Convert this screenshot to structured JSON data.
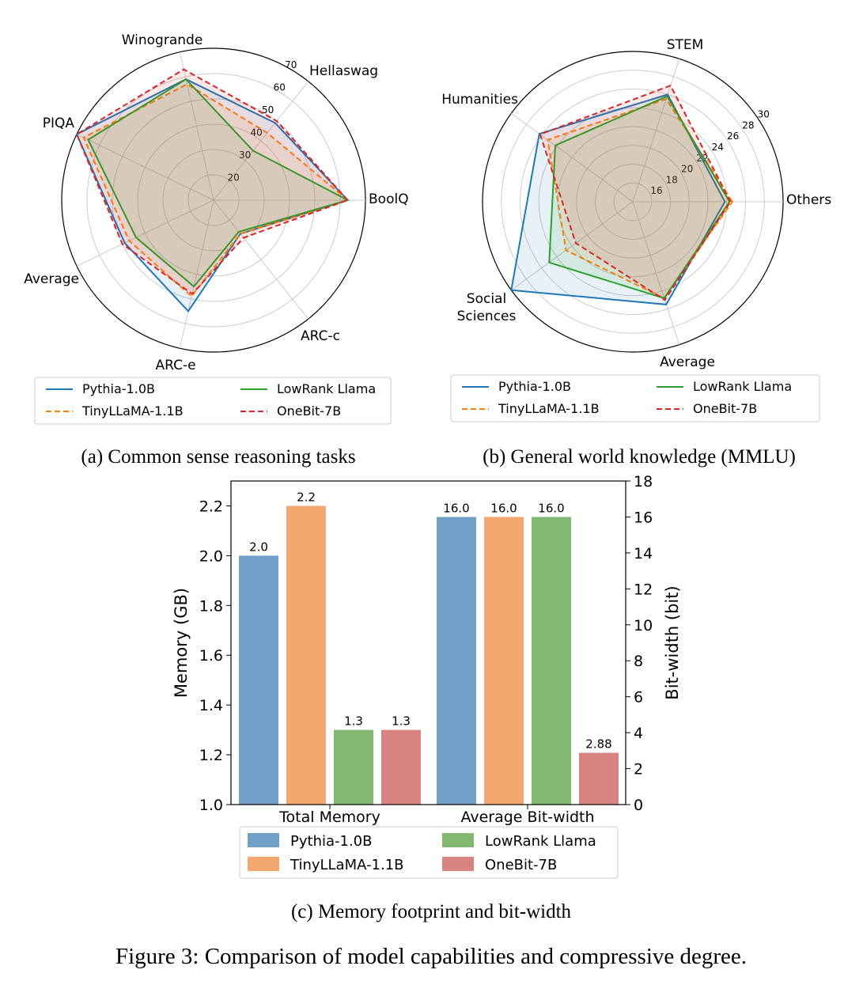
{
  "figure_caption": "Figure 3: Comparison of model capabilities and compressive degree.",
  "models": [
    {
      "name": "Pythia-1.0B",
      "color": "#1f77b4",
      "bar_color": "#729fc7",
      "dash": "solid"
    },
    {
      "name": "TinyLLaMA-1.1B",
      "color": "#ff7f0e",
      "bar_color": "#f4a86f",
      "dash": "dashed"
    },
    {
      "name": "LowRank Llama",
      "color": "#2ca02c",
      "bar_color": "#83b873",
      "dash": "solid"
    },
    {
      "name": "OneBit-7B",
      "color": "#d62728",
      "bar_color": "#d98380",
      "dash": "dashed"
    }
  ],
  "chart_data": [
    {
      "type": "radar",
      "caption": "(a) Common sense reasoning tasks",
      "axes": [
        "BoolQ",
        "Hellaswag",
        "Winogrande",
        "PIQA",
        "Average",
        "ARC-e",
        "ARC-c"
      ],
      "rlim": [
        10,
        70
      ],
      "ticks": [
        20,
        30,
        40,
        50,
        60,
        70
      ],
      "series": [
        {
          "name": "Pythia-1.0B",
          "values": [
            63,
            49,
            59,
            70,
            49,
            55,
            27
          ]
        },
        {
          "name": "TinyLLaMA-1.1B",
          "values": [
            63,
            44,
            57,
            67,
            47,
            49,
            27
          ]
        },
        {
          "name": "LowRank Llama",
          "values": [
            63,
            35,
            59,
            65,
            44,
            45,
            26
          ]
        },
        {
          "name": "OneBit-7B",
          "values": [
            63,
            50,
            63,
            70,
            50,
            48,
            29
          ]
        }
      ]
    },
    {
      "type": "radar",
      "caption": "(b) General world knowledge (MMLU)",
      "axes": [
        "Others",
        "STEM",
        "Humanities",
        "Social Sciences",
        "Average"
      ],
      "rlim": [
        14,
        30
      ],
      "ticks": [
        16,
        18,
        20,
        22,
        24,
        26,
        28,
        30
      ],
      "series": [
        {
          "name": "Pythia-1.0B",
          "values": [
            23.8,
            26.0,
            26.3,
            30.0,
            25.5
          ]
        },
        {
          "name": "TinyLLaMA-1.1B",
          "values": [
            24.6,
            25.5,
            25.2,
            22.8,
            24.8
          ]
        },
        {
          "name": "LowRank Llama",
          "values": [
            24.3,
            25.8,
            24.2,
            25.0,
            24.8
          ]
        },
        {
          "name": "OneBit-7B",
          "values": [
            24.4,
            27.0,
            26.2,
            21.5,
            25.0
          ]
        }
      ]
    },
    {
      "type": "bar",
      "caption": "(c) Memory footprint and bit-width",
      "categories": [
        "Total Memory",
        "Average Bit-width"
      ],
      "ylabel": "Memory (GB)",
      "ylim": [
        1.0,
        2.3
      ],
      "yticks": [
        "1.0",
        "1.2",
        "1.4",
        "1.6",
        "1.8",
        "2.0",
        "2.2"
      ],
      "y2label": "Bit-width (bit)",
      "y2lim": [
        0,
        18
      ],
      "y2ticks": [
        "0",
        "2",
        "4",
        "6",
        "8",
        "10",
        "12",
        "14",
        "16",
        "18"
      ],
      "series": [
        {
          "name": "Pythia-1.0B",
          "values": [
            2.0,
            16.0
          ],
          "labels": [
            "2.0",
            "16.0"
          ]
        },
        {
          "name": "TinyLLaMA-1.1B",
          "values": [
            2.2,
            16.0
          ],
          "labels": [
            "2.2",
            "16.0"
          ]
        },
        {
          "name": "LowRank Llama",
          "values": [
            1.3,
            16.0
          ],
          "labels": [
            "1.3",
            "16.0"
          ]
        },
        {
          "name": "OneBit-7B",
          "values": [
            1.3,
            2.88
          ],
          "labels": [
            "1.3",
            "2.88"
          ]
        }
      ]
    }
  ]
}
